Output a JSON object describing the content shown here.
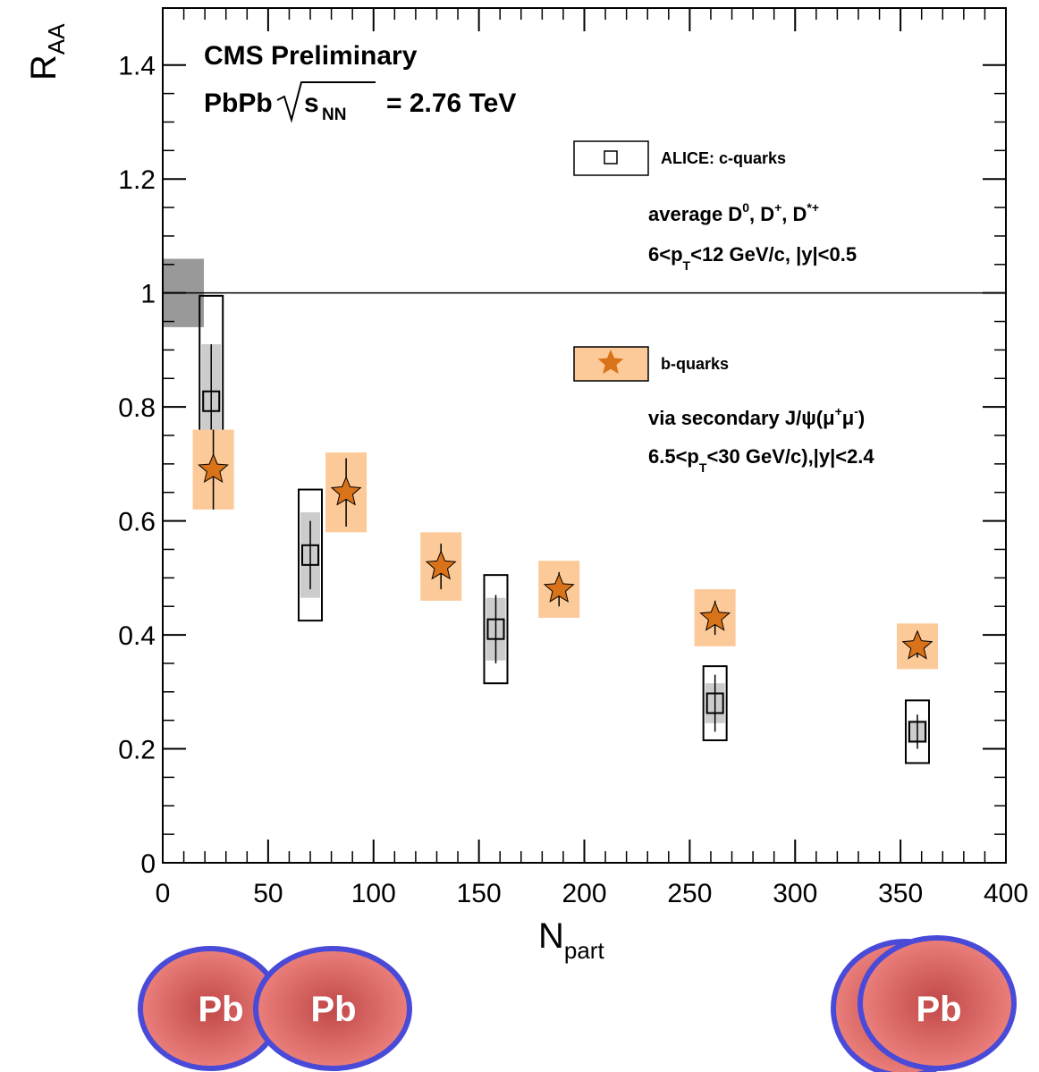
{
  "chart_data": {
    "type": "errorbar",
    "title": "CMS Preliminary",
    "energy_label": [
      "PbPb",
      "s",
      "NN",
      "= 2.76 TeV"
    ],
    "y_label": [
      "R",
      "AA"
    ],
    "x_label": [
      "N",
      "part"
    ],
    "xlim": [
      0,
      400
    ],
    "ylim": [
      0,
      1.5
    ],
    "xticks": [
      0,
      50,
      100,
      150,
      200,
      250,
      300,
      350,
      400
    ],
    "yticks": [
      0,
      0.2,
      0.4,
      0.6,
      0.8,
      1,
      1.2,
      1.4
    ],
    "reference_line": 1,
    "global_uncertainty": 0.06,
    "series": [
      {
        "name": "ALICE: c-quarks",
        "marker": "square",
        "color": "#000000",
        "box_color": "#cccccc",
        "description": [
          [
            "average D",
            "0",
            ", D",
            "+",
            ", D",
            "*+"
          ],
          [
            "6<p",
            "T",
            "<12 GeV/c, |y|<0.5"
          ]
        ],
        "x": [
          23,
          70,
          158,
          262,
          358
        ],
        "values": [
          0.81,
          0.54,
          0.41,
          0.28,
          0.23
        ],
        "errors": [
          0.1,
          0.06,
          0.06,
          0.05,
          0.03
        ],
        "sys_errors": [
          0.185,
          0.115,
          0.095,
          0.065,
          0.055
        ],
        "sys2_errors": [
          0.1,
          0.075,
          0.055,
          0.035,
          0.02
        ]
      },
      {
        "name": "b-quarks",
        "marker": "star",
        "color": "#d9731a",
        "box_color": "#fcc998",
        "description": [
          [
            "via secondary J/ψ(μ",
            "+",
            "μ",
            "-",
            ")"
          ],
          [
            "6.5<p",
            "T",
            "<30 GeV/c),|y|<2.4"
          ]
        ],
        "x": [
          24,
          87,
          132,
          188,
          262,
          358
        ],
        "values": [
          0.69,
          0.65,
          0.52,
          0.48,
          0.43,
          0.38
        ],
        "errors": [
          0.07,
          0.06,
          0.04,
          0.03,
          0.03,
          0.02
        ],
        "sys_errors": [
          0.07,
          0.07,
          0.06,
          0.05,
          0.05,
          0.04
        ]
      }
    ],
    "collision_labels": [
      "Pb",
      "Pb",
      "Pb"
    ]
  }
}
